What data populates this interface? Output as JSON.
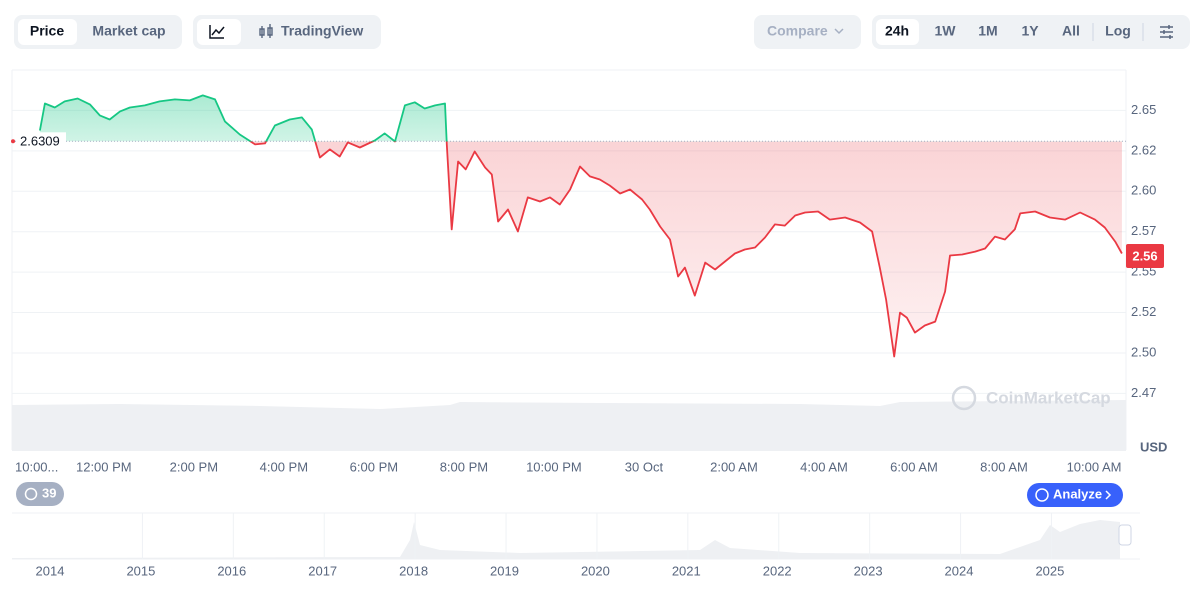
{
  "ui": {
    "tabs": [
      "Price",
      "Market cap"
    ],
    "view": "TradingView",
    "compare": "Compare",
    "ranges": [
      "24h",
      "1W",
      "1M",
      "1Y",
      "All"
    ],
    "log": "Log",
    "history_count": "39",
    "analyze": "Analyze",
    "watermark": "CoinMarketCap",
    "navigator_years": [
      "2014",
      "2015",
      "2016",
      "2017",
      "2018",
      "2019",
      "2020",
      "2021",
      "2022",
      "2023",
      "2024",
      "2025"
    ]
  },
  "chart_data": {
    "type": "line",
    "unit": "USD",
    "reference_value": 2.6309,
    "current_price": 2.56,
    "above_color": "#16c784",
    "below_color": "#ea3943",
    "grid": true,
    "x": [
      0.58,
      0.69,
      0.91,
      1.13,
      1.42,
      1.69,
      1.91,
      2.13,
      2.36,
      2.58,
      2.91,
      3.24,
      3.58,
      3.91,
      4.2,
      4.47,
      4.69,
      5.02,
      5.36,
      5.58,
      5.8,
      6.13,
      6.4,
      6.62,
      6.8,
      7.02,
      7.24,
      7.42,
      7.69,
      8.02,
      8.24,
      8.47,
      8.69,
      8.91,
      9.13,
      9.36,
      9.58,
      9.62,
      9.73,
      9.87,
      10.04,
      10.24,
      10.47,
      10.62,
      10.76,
      10.98,
      11.2,
      11.42,
      11.69,
      11.91,
      12.13,
      12.36,
      12.58,
      12.8,
      13.02,
      13.24,
      13.47,
      13.69,
      13.96,
      14.13,
      14.36,
      14.58,
      14.76,
      14.91,
      15.13,
      15.36,
      15.58,
      15.8,
      16.02,
      16.24,
      16.47,
      16.69,
      16.91,
      17.13,
      17.36,
      17.58,
      17.87,
      18.13,
      18.47,
      18.8,
      19.07,
      19.24,
      19.38,
      19.56,
      19.69,
      19.84,
      20.02,
      20.24,
      20.47,
      20.69,
      20.8,
      21.07,
      21.36,
      21.58,
      21.8,
      22.02,
      22.24,
      22.36,
      22.69,
      23.02,
      23.36,
      23.69,
      24.02,
      24.24,
      24.47,
      24.62
    ],
    "values": [
      2.6376,
      2.6543,
      2.6518,
      2.6556,
      2.6574,
      2.6537,
      2.6469,
      2.6444,
      2.6494,
      2.6518,
      2.6531,
      2.6556,
      2.6568,
      2.6562,
      2.6593,
      2.6568,
      2.6432,
      2.6351,
      2.629,
      2.6296,
      2.6407,
      2.6444,
      2.6457,
      2.6382,
      2.6209,
      2.6259,
      2.6215,
      2.6302,
      2.6271,
      2.6314,
      2.6358,
      2.6308,
      2.6531,
      2.655,
      2.6512,
      2.6531,
      2.6543,
      2.629,
      2.5764,
      2.6184,
      2.6135,
      2.6246,
      2.6147,
      2.6104,
      2.5813,
      2.5887,
      2.5751,
      2.5962,
      2.5937,
      2.5962,
      2.5918,
      2.6011,
      2.6153,
      2.6092,
      2.6073,
      2.6036,
      2.5986,
      2.6011,
      2.5949,
      2.5887,
      2.5782,
      2.5702,
      2.5473,
      2.5528,
      2.5355,
      2.5559,
      2.5516,
      2.5566,
      2.5615,
      2.564,
      2.5652,
      2.5714,
      2.5795,
      2.5788,
      2.585,
      2.5869,
      2.5875,
      2.5825,
      2.5838,
      2.5807,
      2.5751,
      2.5528,
      2.533,
      2.4978,
      2.525,
      2.5219,
      2.5126,
      2.517,
      2.5194,
      2.538,
      2.5603,
      2.5609,
      2.5627,
      2.5646,
      2.572,
      2.5702,
      2.5764,
      2.5863,
      2.5875,
      2.5838,
      2.5825,
      2.5869,
      2.5825,
      2.5776,
      2.5689,
      2.5615
    ],
    "xlim": [
      -0.04,
      24.71
    ],
    "xticks": [
      {
        "value": 0,
        "label": "10:00..."
      },
      {
        "value": 2,
        "label": "12:00 PM"
      },
      {
        "value": 4,
        "label": "2:00 PM"
      },
      {
        "value": 6,
        "label": "4:00 PM"
      },
      {
        "value": 8,
        "label": "6:00 PM"
      },
      {
        "value": 10,
        "label": "8:00 PM"
      },
      {
        "value": 12,
        "label": "10:00 PM"
      },
      {
        "value": 14,
        "label": "30 Oct"
      },
      {
        "value": 16,
        "label": "2:00 AM"
      },
      {
        "value": 18,
        "label": "4:00 AM"
      },
      {
        "value": 20,
        "label": "6:00 AM"
      },
      {
        "value": 22,
        "label": "8:00 AM"
      },
      {
        "value": 24,
        "label": "10:00 AM"
      }
    ],
    "ylim": [
      2.44,
      2.675
    ],
    "yticks": [
      {
        "value": 2.475,
        "label": "2.47"
      },
      {
        "value": 2.5,
        "label": "2.50"
      },
      {
        "value": 2.525,
        "label": "2.52"
      },
      2.55,
      {
        "value": 2.575,
        "label": "2.57"
      },
      {
        "value": 2.6,
        "label": "2.60"
      },
      {
        "value": 2.625,
        "label": "2.62"
      },
      2.65
    ]
  }
}
